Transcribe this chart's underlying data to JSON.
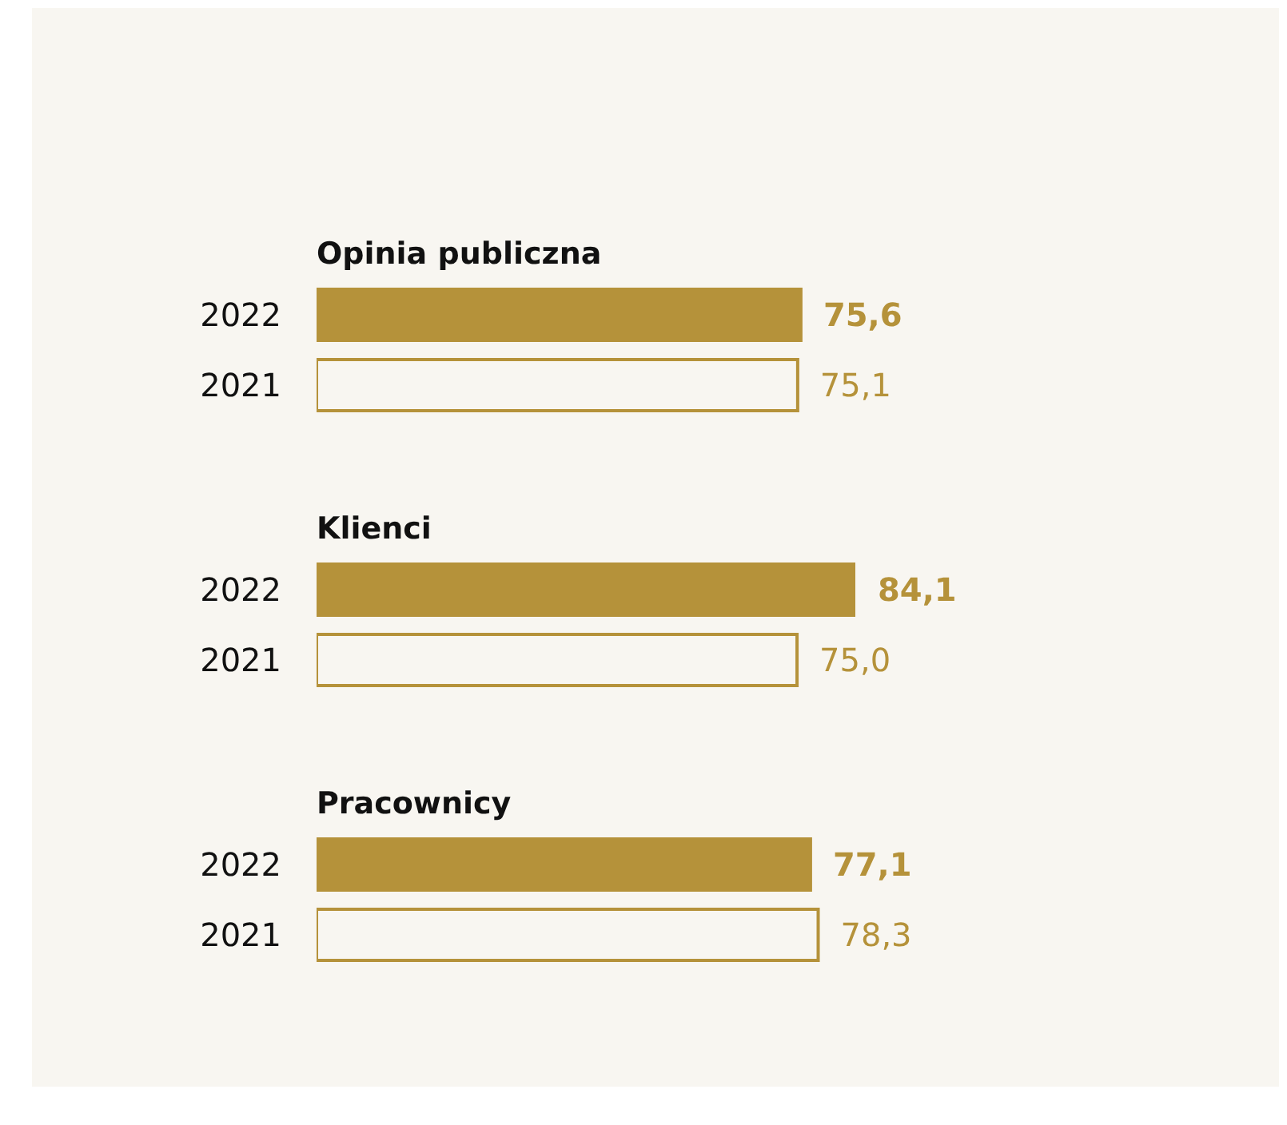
{
  "chart_data": [
    {
      "type": "bar",
      "orientation": "horizontal",
      "title": "Opinia publiczna",
      "categories": [
        "2022",
        "2021"
      ],
      "values": [
        75.6,
        75.1
      ],
      "value_labels": [
        "75,6",
        "75,1"
      ],
      "colors": [
        "#b5923a",
        "#f8f6f1"
      ],
      "grid": false,
      "legend": false
    },
    {
      "type": "bar",
      "orientation": "horizontal",
      "title": "Klienci",
      "categories": [
        "2022",
        "2021"
      ],
      "values": [
        84.1,
        75.0
      ],
      "value_labels": [
        "84,1",
        "75,0"
      ],
      "colors": [
        "#b5923a",
        "#f8f6f1"
      ],
      "grid": false,
      "legend": false
    },
    {
      "type": "bar",
      "orientation": "horizontal",
      "title": "Pracownicy",
      "categories": [
        "2022",
        "2021"
      ],
      "values": [
        77.1,
        78.3
      ],
      "value_labels": [
        "77,1",
        "78,3"
      ],
      "colors": [
        "#b5923a",
        "#f8f6f1"
      ],
      "grid": false,
      "legend": false
    }
  ]
}
